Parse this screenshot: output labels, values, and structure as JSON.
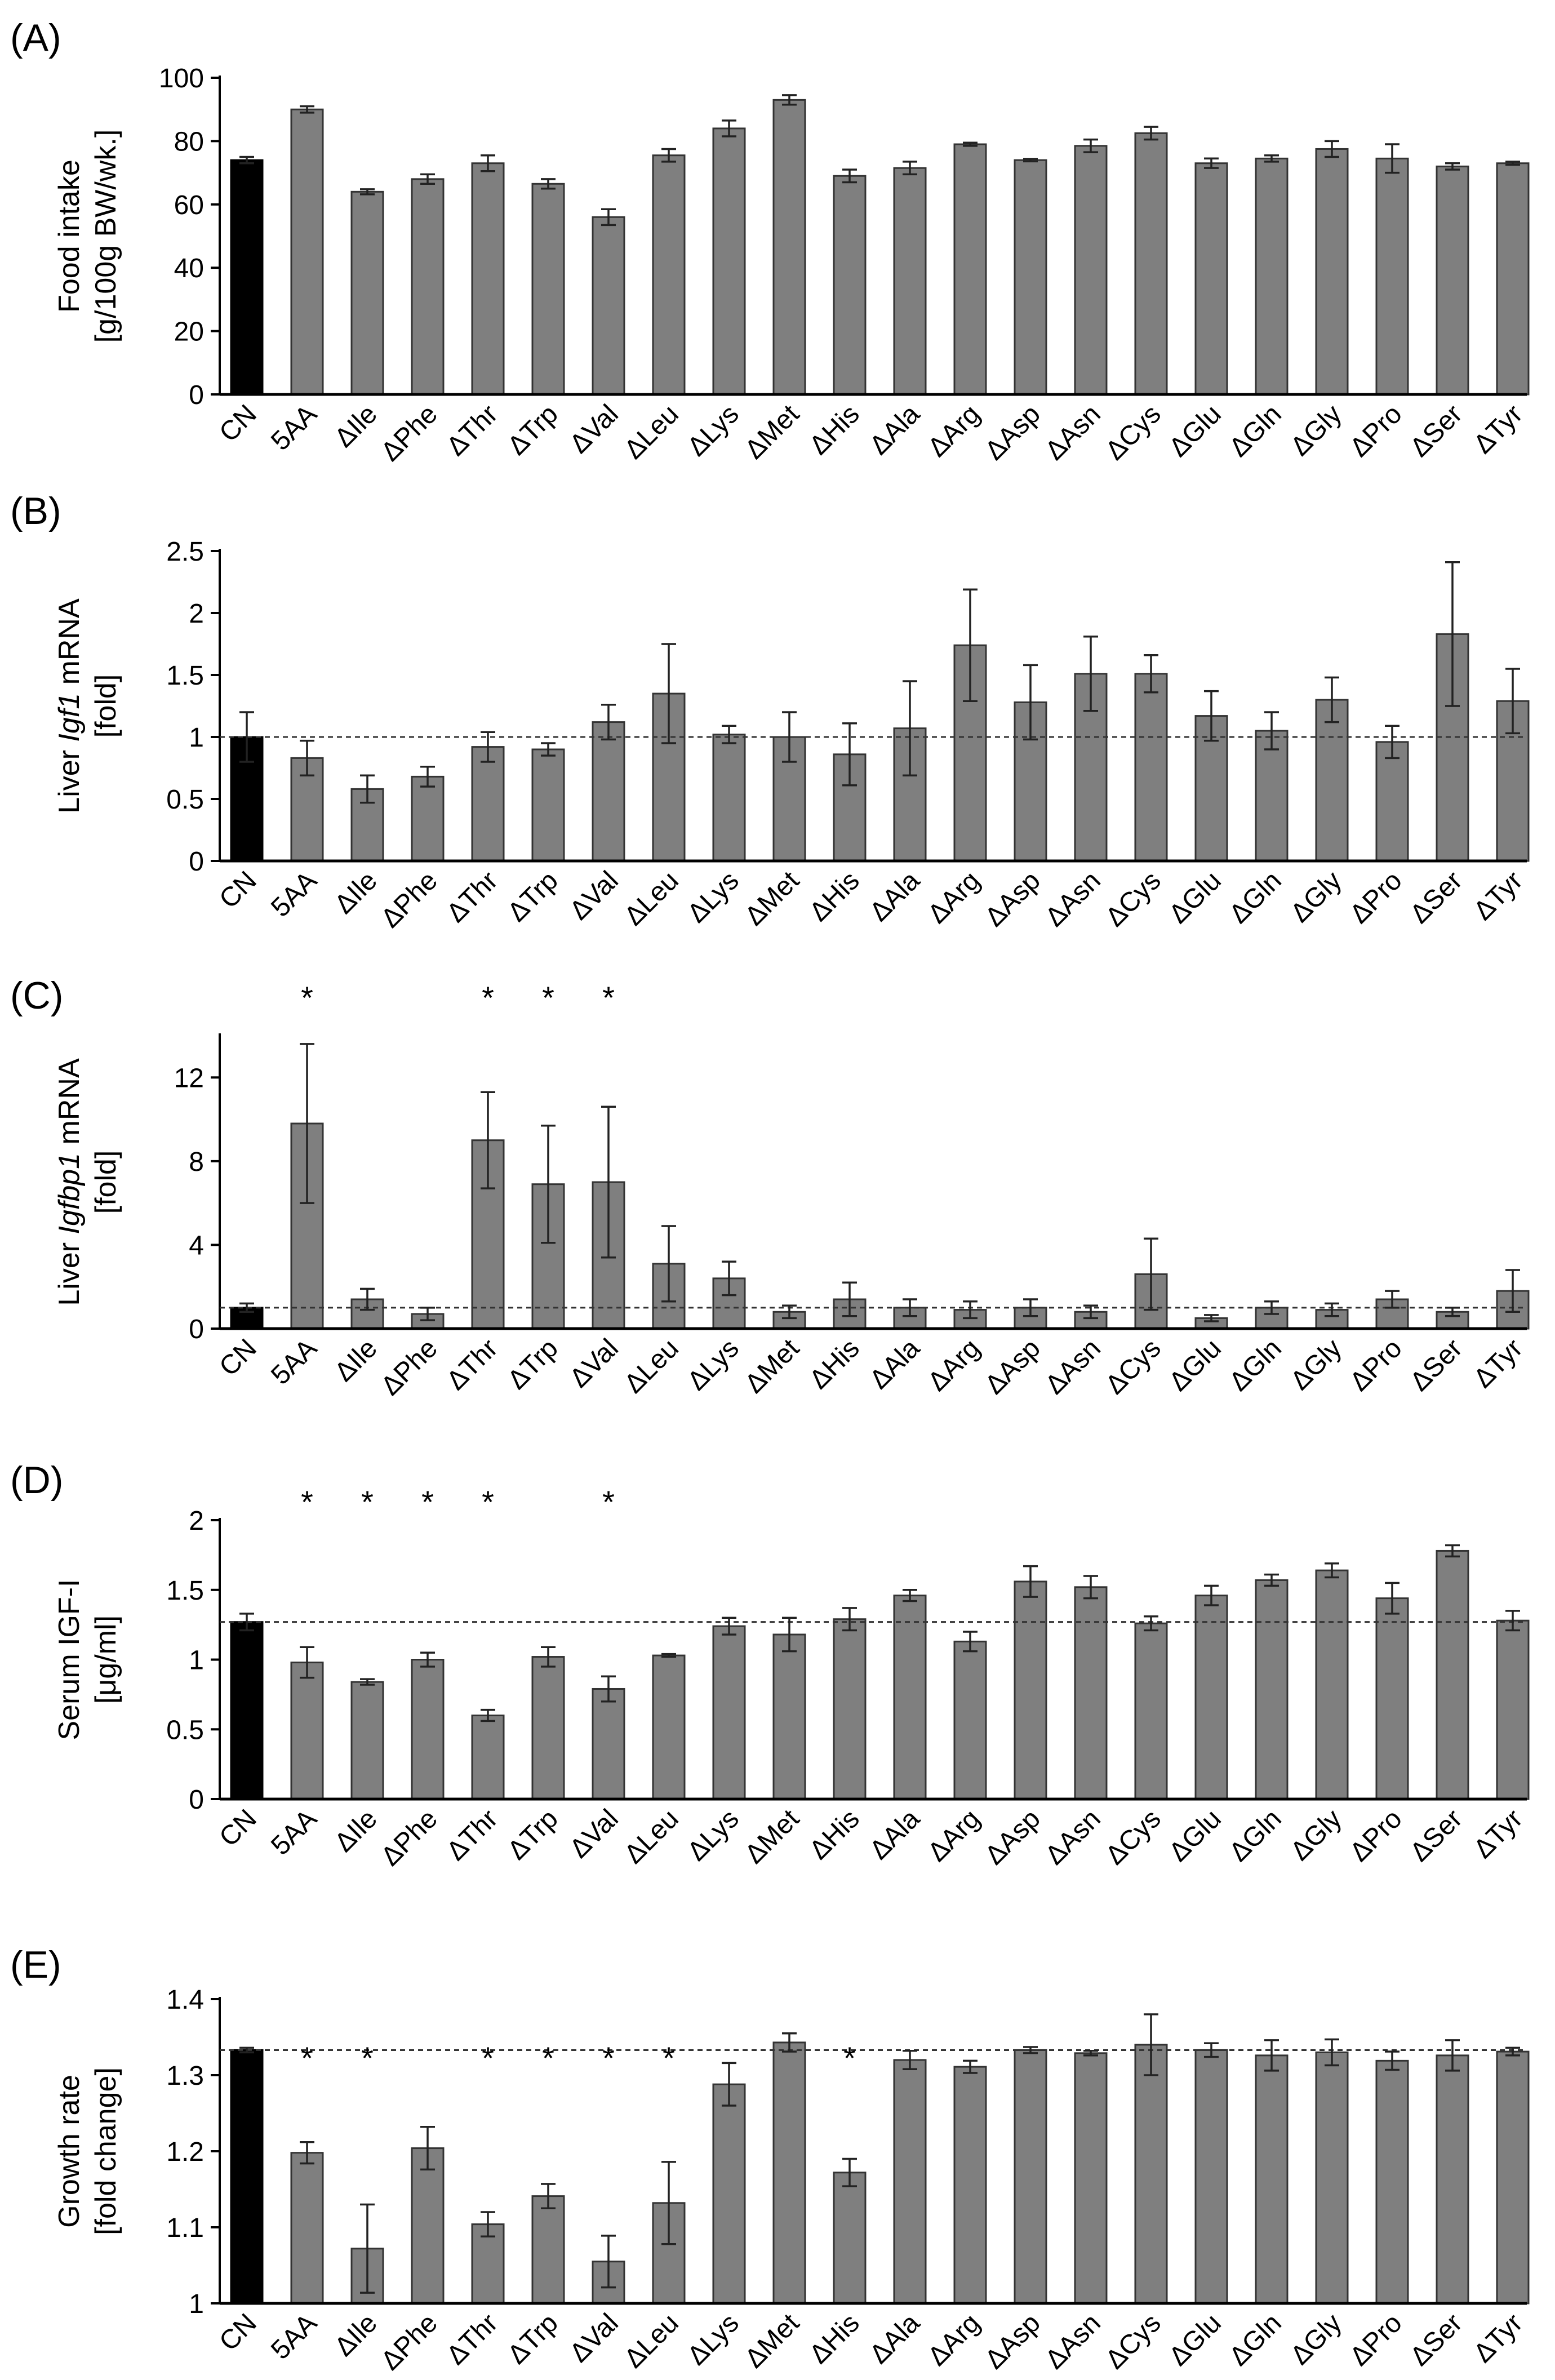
{
  "figure": {
    "panels": [
      "(A)",
      "(B)",
      "(C)",
      "(D)",
      "(E)"
    ]
  },
  "colors": {
    "control_bar": "#000000",
    "treatment_bar": "#7f7f7f",
    "bar_stroke": "#333333",
    "axis": "#000000",
    "reference_line": "#333333"
  },
  "chart_data": [
    {
      "type": "bar",
      "panel_label": "(A)",
      "title": "",
      "ylabel_lines": [
        "Food intake",
        "[g/100g BW/wk.]"
      ],
      "ylabel_italic_word": "",
      "categories": [
        "CN",
        "5AA",
        "ΔIle",
        "ΔPhe",
        "ΔThr",
        "ΔTrp",
        "ΔVal",
        "ΔLeu",
        "ΔLys",
        "ΔMet",
        "ΔHis",
        "ΔAla",
        "ΔArg",
        "ΔAsp",
        "ΔAsn",
        "ΔCys",
        "ΔGlu",
        "ΔGln",
        "ΔGly",
        "ΔPro",
        "ΔSer",
        "ΔTyr"
      ],
      "values": [
        74,
        90,
        64,
        68,
        73,
        66.5,
        56,
        75.5,
        84,
        93,
        69,
        71.5,
        79,
        74,
        78.5,
        82.5,
        73,
        74.5,
        77.5,
        74.5,
        72,
        73
      ],
      "errors": [
        1,
        1,
        0.8,
        1.5,
        2.5,
        1.5,
        2.5,
        2,
        2.5,
        1.5,
        2,
        2,
        0.5,
        0.4,
        2,
        2,
        1.5,
        1,
        2.5,
        4.5,
        1,
        0.5
      ],
      "ylim": [
        0,
        100
      ],
      "yticks": [
        0,
        20,
        40,
        60,
        80,
        100
      ],
      "ytick_labels": [
        "0",
        "20",
        "40",
        "60",
        "80",
        "100"
      ],
      "reference_line": null,
      "significant": []
    },
    {
      "type": "bar",
      "panel_label": "(B)",
      "title": "",
      "ylabel_lines": [
        "Liver Igf1 mRNA",
        "[fold]"
      ],
      "ylabel_italic_word": "Igf1",
      "categories": [
        "CN",
        "5AA",
        "ΔIle",
        "ΔPhe",
        "ΔThr",
        "ΔTrp",
        "ΔVal",
        "ΔLeu",
        "ΔLys",
        "ΔMet",
        "ΔHis",
        "ΔAla",
        "ΔArg",
        "ΔAsp",
        "ΔAsn",
        "ΔCys",
        "ΔGlu",
        "ΔGln",
        "ΔGly",
        "ΔPro",
        "ΔSer",
        "ΔTyr"
      ],
      "values": [
        1.0,
        0.83,
        0.58,
        0.68,
        0.92,
        0.9,
        1.12,
        1.35,
        1.02,
        1.0,
        0.86,
        1.07,
        1.74,
        1.28,
        1.51,
        1.51,
        1.17,
        1.05,
        1.3,
        0.96,
        1.83,
        1.29
      ],
      "errors": [
        0.2,
        0.14,
        0.11,
        0.08,
        0.12,
        0.05,
        0.14,
        0.4,
        0.07,
        0.2,
        0.25,
        0.38,
        0.45,
        0.3,
        0.3,
        0.15,
        0.2,
        0.15,
        0.18,
        0.13,
        0.58,
        0.26
      ],
      "ylim": [
        0,
        2.5
      ],
      "yticks": [
        0,
        0.5,
        1,
        1.5,
        2,
        2.5
      ],
      "ytick_labels": [
        "0",
        "0.5",
        "1",
        "1.5",
        "2",
        "2.5"
      ],
      "reference_line": 1.0,
      "significant": []
    },
    {
      "type": "bar",
      "panel_label": "(C)",
      "title": "",
      "ylabel_lines": [
        "Liver Igfbp1 mRNA",
        "[fold]"
      ],
      "ylabel_italic_word": "Igfbp1",
      "categories": [
        "CN",
        "5AA",
        "ΔIle",
        "ΔPhe",
        "ΔThr",
        "ΔTrp",
        "ΔVal",
        "ΔLeu",
        "ΔLys",
        "ΔMet",
        "ΔHis",
        "ΔAla",
        "ΔArg",
        "ΔAsp",
        "ΔAsn",
        "ΔCys",
        "ΔGlu",
        "ΔGln",
        "ΔGly",
        "ΔPro",
        "ΔSer",
        "ΔTyr"
      ],
      "values": [
        1.0,
        9.8,
        1.4,
        0.7,
        9.0,
        6.9,
        7.0,
        3.1,
        2.4,
        0.8,
        1.4,
        1.0,
        0.9,
        1.0,
        0.8,
        2.6,
        0.5,
        1.0,
        0.9,
        1.4,
        0.8,
        1.8
      ],
      "errors": [
        0.2,
        3.8,
        0.5,
        0.3,
        2.3,
        2.8,
        3.6,
        1.8,
        0.8,
        0.3,
        0.8,
        0.4,
        0.4,
        0.4,
        0.3,
        1.7,
        0.15,
        0.3,
        0.3,
        0.4,
        0.2,
        1.0
      ],
      "ylim": [
        0,
        14
      ],
      "yticks": [
        0,
        4,
        8,
        12
      ],
      "ytick_labels": [
        "0",
        "4",
        "8",
        "12"
      ],
      "reference_line": 1.0,
      "significant": [
        "5AA",
        "ΔThr",
        "ΔTrp",
        "ΔVal"
      ]
    },
    {
      "type": "bar",
      "panel_label": "(D)",
      "title": "",
      "ylabel_lines": [
        "Serum IGF-I",
        "[μg/ml]"
      ],
      "ylabel_italic_word": "",
      "categories": [
        "CN",
        "5AA",
        "ΔIle",
        "ΔPhe",
        "ΔThr",
        "ΔTrp",
        "ΔVal",
        "ΔLeu",
        "ΔLys",
        "ΔMet",
        "ΔHis",
        "ΔAla",
        "ΔArg",
        "ΔAsp",
        "ΔAsn",
        "ΔCys",
        "ΔGlu",
        "ΔGln",
        "ΔGly",
        "ΔPro",
        "ΔSer",
        "ΔTyr"
      ],
      "values": [
        1.27,
        0.98,
        0.84,
        1.0,
        0.6,
        1.02,
        0.79,
        1.03,
        1.24,
        1.18,
        1.29,
        1.46,
        1.13,
        1.56,
        1.52,
        1.26,
        1.46,
        1.57,
        1.64,
        1.44,
        1.78,
        1.28
      ],
      "errors": [
        0.06,
        0.11,
        0.02,
        0.05,
        0.04,
        0.07,
        0.09,
        0.01,
        0.06,
        0.12,
        0.08,
        0.04,
        0.07,
        0.11,
        0.08,
        0.05,
        0.07,
        0.04,
        0.05,
        0.11,
        0.04,
        0.07
      ],
      "ylim": [
        0,
        2
      ],
      "yticks": [
        0,
        0.5,
        1,
        1.5,
        2
      ],
      "ytick_labels": [
        "0",
        "0.5",
        "1",
        "1.5",
        "2"
      ],
      "reference_line": 1.27,
      "significant": [
        "5AA",
        "ΔIle",
        "ΔPhe",
        "ΔThr",
        "ΔVal"
      ]
    },
    {
      "type": "bar",
      "panel_label": "(E)",
      "title": "",
      "ylabel_lines": [
        "Growth rate",
        "[fold change]"
      ],
      "ylabel_italic_word": "",
      "categories": [
        "CN",
        "5AA",
        "ΔIle",
        "ΔPhe",
        "ΔThr",
        "ΔTrp",
        "ΔVal",
        "ΔLeu",
        "ΔLys",
        "ΔMet",
        "ΔHis",
        "ΔAla",
        "ΔArg",
        "ΔAsp",
        "ΔAsn",
        "ΔCys",
        "ΔGlu",
        "ΔGln",
        "ΔGly",
        "ΔPro",
        "ΔSer",
        "ΔTyr"
      ],
      "values": [
        1.333,
        1.198,
        1.072,
        1.204,
        1.104,
        1.141,
        1.055,
        1.132,
        1.288,
        1.343,
        1.172,
        1.32,
        1.311,
        1.333,
        1.329,
        1.34,
        1.333,
        1.326,
        1.33,
        1.319,
        1.326,
        1.331
      ],
      "errors": [
        0.003,
        0.014,
        0.058,
        0.028,
        0.016,
        0.016,
        0.034,
        0.054,
        0.028,
        0.012,
        0.018,
        0.012,
        0.008,
        0.004,
        0.003,
        0.04,
        0.009,
        0.02,
        0.017,
        0.012,
        0.02,
        0.005
      ],
      "ylim": [
        1,
        1.4
      ],
      "yticks": [
        1,
        1.1,
        1.2,
        1.3,
        1.4
      ],
      "ytick_labels": [
        "1",
        "1.1",
        "1.2",
        "1.3",
        "1.4"
      ],
      "reference_line": 1.333,
      "significant": [
        "5AA",
        "ΔIle",
        "ΔThr",
        "ΔTrp",
        "ΔVal",
        "ΔLeu",
        "ΔHis"
      ]
    }
  ]
}
